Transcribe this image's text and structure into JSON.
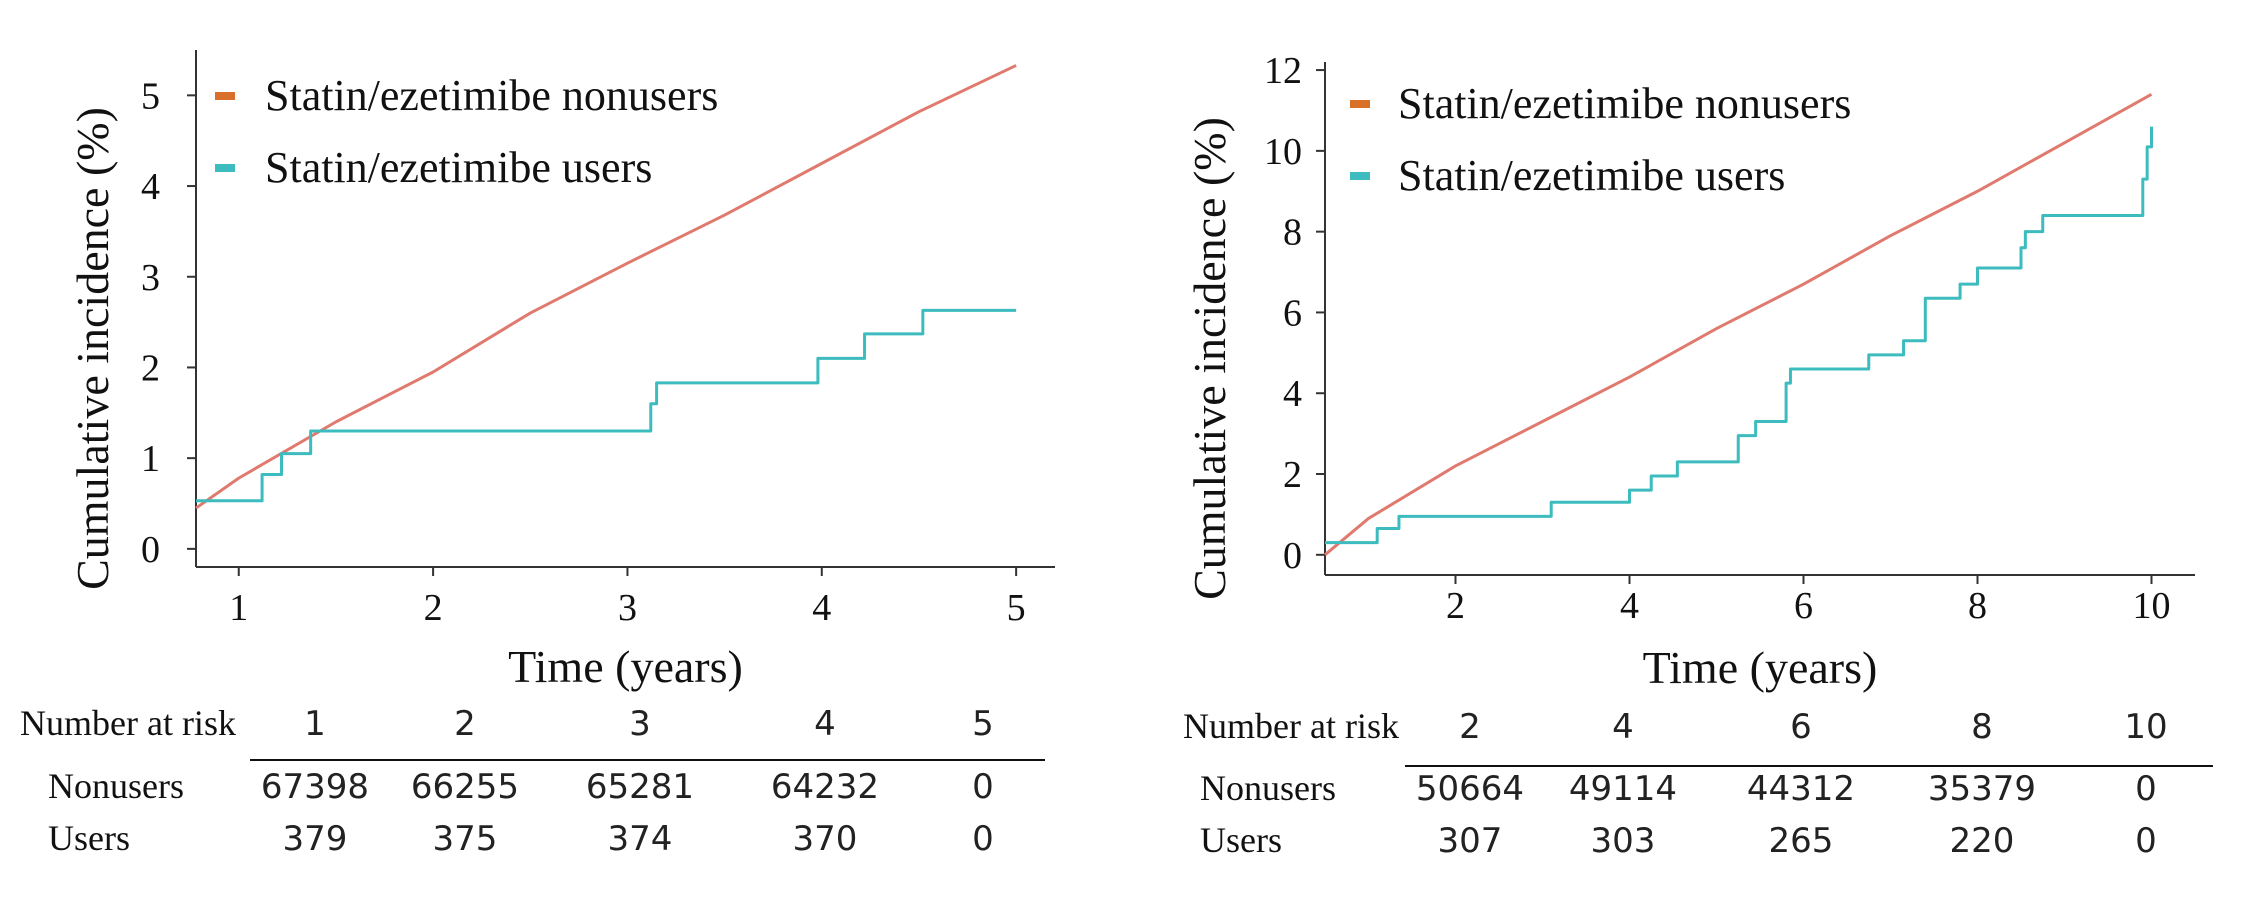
{
  "colors": {
    "nonusers": "#e07a6e",
    "users": "#3cbcbe",
    "legend_nonusers": "#d8702c",
    "legend_users": "#3cbcbe",
    "axis": "#333333"
  },
  "chart_data": [
    {
      "type": "line",
      "title": "",
      "xlabel": "Time (years)",
      "ylabel": "Cumulative incidence (%)",
      "xlim": [
        0.78,
        5.2
      ],
      "ylim": [
        -0.2,
        5.5
      ],
      "xticks": [
        1,
        2,
        3,
        4,
        5
      ],
      "yticks": [
        0,
        1,
        2,
        3,
        4,
        5
      ],
      "legend": {
        "placement": "top-left",
        "entries": [
          "Statin/ezetimibe nonusers",
          "Statin/ezetimibe users"
        ]
      },
      "series": [
        {
          "name": "Statin/ezetimibe nonusers",
          "color": "#e07a6e",
          "step": false,
          "x": [
            0.78,
            1.0,
            1.5,
            2.0,
            2.5,
            3.0,
            3.5,
            4.0,
            4.5,
            5.0
          ],
          "y": [
            0.45,
            0.78,
            1.4,
            1.95,
            2.6,
            3.15,
            3.68,
            4.25,
            4.82,
            5.33
          ]
        },
        {
          "name": "Statin/ezetimibe users",
          "color": "#3cbcbe",
          "step": true,
          "x": [
            0.78,
            1.12,
            1.22,
            1.37,
            3.12,
            3.15,
            3.98,
            4.22,
            4.52,
            5.0
          ],
          "y": [
            0.53,
            0.82,
            1.05,
            1.3,
            1.6,
            1.83,
            2.1,
            2.37,
            2.63,
            2.63
          ]
        }
      ],
      "risk_table": {
        "header": "Number at risk",
        "times": [
          "1",
          "2",
          "3",
          "4",
          "5"
        ],
        "rows": [
          {
            "label": "Nonusers",
            "values": [
              "67398",
              "66255",
              "65281",
              "64232",
              "0"
            ]
          },
          {
            "label": "Users",
            "values": [
              "379",
              "375",
              "374",
              "370",
              "0"
            ]
          }
        ]
      }
    },
    {
      "type": "line",
      "title": "",
      "xlabel": "Time (years)",
      "ylabel": "Cumulative incidence (%)",
      "xlim": [
        0.5,
        10.5
      ],
      "ylim": [
        -0.5,
        12.2
      ],
      "xticks": [
        2,
        4,
        6,
        8,
        10
      ],
      "yticks": [
        0,
        2,
        4,
        6,
        8,
        10,
        12
      ],
      "legend": {
        "placement": "top-left",
        "entries": [
          "Statin/ezetimibe nonusers",
          "Statin/ezetimibe users"
        ]
      },
      "series": [
        {
          "name": "Statin/ezetimibe nonusers",
          "color": "#e07a6e",
          "step": false,
          "x": [
            0.5,
            1.0,
            2.0,
            3.0,
            4.0,
            5.0,
            6.0,
            7.0,
            8.0,
            9.0,
            10.0
          ],
          "y": [
            0.0,
            0.9,
            2.2,
            3.3,
            4.4,
            5.6,
            6.7,
            7.9,
            9.0,
            10.2,
            11.4
          ]
        },
        {
          "name": "Statin/ezetimibe users",
          "color": "#3cbcbe",
          "step": true,
          "x": [
            0.5,
            1.1,
            1.35,
            3.1,
            4.0,
            4.25,
            4.55,
            5.25,
            5.45,
            5.8,
            5.85,
            6.75,
            7.15,
            7.4,
            7.8,
            8.0,
            8.5,
            8.55,
            8.75,
            9.9,
            9.95,
            10.0
          ],
          "y": [
            0.3,
            0.65,
            0.95,
            1.3,
            1.6,
            1.95,
            2.3,
            2.95,
            3.3,
            4.25,
            4.6,
            4.95,
            5.3,
            6.35,
            6.7,
            7.1,
            7.6,
            8.0,
            8.4,
            9.3,
            10.1,
            10.6
          ]
        }
      ],
      "risk_table": {
        "header": "Number at risk",
        "times": [
          "2",
          "4",
          "6",
          "8",
          "10"
        ],
        "rows": [
          {
            "label": "Nonusers",
            "values": [
              "50664",
              "49114",
              "44312",
              "35379",
              "0"
            ]
          },
          {
            "label": "Users",
            "values": [
              "307",
              "303",
              "265",
              "220",
              "0"
            ]
          }
        ]
      }
    }
  ]
}
